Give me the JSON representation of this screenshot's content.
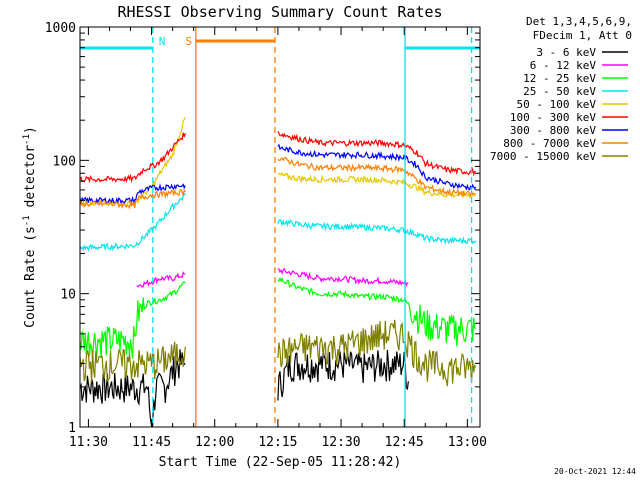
{
  "chart_data": {
    "type": "line",
    "title": "RHESSI Observing Summary Count Rates",
    "xlabel": "Start Time (22-Sep-05 11:28:42)",
    "ylabel_main": "Count Rate (s",
    "ylabel_sup1": "-1",
    "ylabel_mid": " detector",
    "ylabel_sup2": "-1",
    "ylabel_end": ")",
    "yscale": "log",
    "ylim": [
      1,
      1000
    ],
    "xlim_minutes": [
      -2.0,
      93.0
    ],
    "x_ticks": [
      {
        "m": 0,
        "label": "11:30"
      },
      {
        "m": 15,
        "label": "11:45"
      },
      {
        "m": 30,
        "label": "12:00"
      },
      {
        "m": 45,
        "label": "12:15"
      },
      {
        "m": 60,
        "label": "12:30"
      },
      {
        "m": 75,
        "label": "12:45"
      },
      {
        "m": 90,
        "label": "13:00"
      }
    ],
    "y_ticks": [
      {
        "v": 1,
        "label": "1"
      },
      {
        "v": 10,
        "label": "10"
      },
      {
        "v": 100,
        "label": "100"
      },
      {
        "v": 1000,
        "label": "1000"
      }
    ],
    "legend": {
      "header1": "Det 1,3,4,5,6,9,",
      "header2": "FDecim 1, Att 0",
      "placement": "outside-right"
    },
    "timestamp": "20-Oct-2021 12:44",
    "annotations": [
      {
        "text": "N",
        "m": 17.5,
        "color": "#00e5ee"
      },
      {
        "text": "S",
        "m": 23.8,
        "color": "#ff7f00"
      }
    ],
    "night_intervals": [
      {
        "start": -2.0,
        "end": 15.3,
        "color": "#00e5ee"
      },
      {
        "start": 75.2,
        "end": 93.0,
        "color": "#00e5ee"
      }
    ],
    "saa_interval": {
      "start": 25.5,
      "end": 44.3,
      "color": "#ff7f00"
    },
    "vertical_markers": [
      {
        "m": 15.3,
        "color": "#00e5ee",
        "style": "dashed"
      },
      {
        "m": 25.5,
        "color": "#ff7f00",
        "style": "solid"
      },
      {
        "m": 44.3,
        "color": "#ff7f00",
        "style": "dashed"
      },
      {
        "m": 75.2,
        "color": "#00e5ee",
        "style": "solid"
      },
      {
        "m": 91.0,
        "color": "#00e5ee",
        "style": "dashed"
      }
    ],
    "series": [
      {
        "name": "3 - 6 keV",
        "color": "#000000",
        "segments": [
          {
            "points": [
              [
                -2,
                2
              ],
              [
                12,
                2
              ],
              [
                13,
                2
              ],
              [
                14,
                2
              ],
              [
                15,
                1
              ],
              [
                16,
                2
              ],
              [
                18,
                2
              ],
              [
                21,
                3
              ],
              [
                23,
                3
              ]
            ]
          },
          {
            "points": [
              [
                45,
                2
              ],
              [
                48,
                3
              ],
              [
                52,
                3
              ],
              [
                55,
                3
              ],
              [
                60,
                3
              ],
              [
                65,
                2.8
              ],
              [
                70,
                3
              ],
              [
                75,
                3
              ],
              [
                76,
                2.2
              ]
            ]
          }
        ]
      },
      {
        "name": "6 - 12 keV",
        "color": "#ff00ff",
        "segments": [
          {
            "points": [
              [
                11.5,
                11.5
              ],
              [
                14,
                12
              ],
              [
                17,
                13
              ],
              [
                20,
                13
              ],
              [
                23,
                14
              ]
            ]
          },
          {
            "points": [
              [
                45,
                15
              ],
              [
                50,
                14
              ],
              [
                55,
                13
              ],
              [
                60,
                13
              ],
              [
                65,
                12.5
              ],
              [
                70,
                12.5
              ],
              [
                75,
                12
              ],
              [
                76,
                12
              ]
            ]
          }
        ]
      },
      {
        "name": "12 - 25 keV",
        "color": "#00ff00",
        "segments": [
          {
            "points": [
              [
                -2,
                4.5
              ],
              [
                5,
                4.5
              ],
              [
                11,
                4.5
              ],
              [
                11.5,
                7
              ],
              [
                14,
                8.5
              ],
              [
                17,
                9
              ],
              [
                20,
                10
              ],
              [
                23,
                12
              ]
            ]
          },
          {
            "points": [
              [
                45,
                13
              ],
              [
                50,
                11
              ],
              [
                55,
                10
              ],
              [
                60,
                10
              ],
              [
                65,
                9.5
              ],
              [
                70,
                9.5
              ],
              [
                75,
                9
              ],
              [
                80,
                6
              ],
              [
                85,
                5.5
              ],
              [
                90,
                5.5
              ],
              [
                92,
                5.5
              ]
            ]
          }
        ]
      },
      {
        "name": "25 - 50 keV",
        "color": "#00e5ee",
        "segments": [
          {
            "points": [
              [
                -2,
                22
              ],
              [
                5,
                22.5
              ],
              [
                11,
                23
              ],
              [
                14,
                28
              ],
              [
                16,
                32
              ],
              [
                18,
                38
              ],
              [
                20,
                45
              ],
              [
                23,
                55
              ]
            ]
          },
          {
            "points": [
              [
                45,
                35
              ],
              [
                50,
                33
              ],
              [
                55,
                32
              ],
              [
                60,
                32
              ],
              [
                65,
                31.5
              ],
              [
                70,
                31
              ],
              [
                75,
                30
              ],
              [
                78,
                28
              ],
              [
                80,
                26
              ],
              [
                85,
                25
              ],
              [
                90,
                25
              ],
              [
                92,
                25
              ]
            ]
          }
        ]
      },
      {
        "name": "50 - 100 keV",
        "color": "#e6c800",
        "segments": [
          {
            "points": [
              [
                -2,
                48
              ],
              [
                5,
                48
              ],
              [
                11,
                48
              ],
              [
                13,
                55
              ],
              [
                15,
                63
              ],
              [
                17,
                80
              ],
              [
                20,
                110
              ],
              [
                23,
                210
              ]
            ]
          },
          {
            "points": [
              [
                45,
                78
              ],
              [
                50,
                73
              ],
              [
                55,
                72
              ],
              [
                60,
                72
              ],
              [
                65,
                72
              ],
              [
                70,
                71
              ],
              [
                75,
                68
              ],
              [
                78,
                63
              ],
              [
                80,
                58
              ],
              [
                85,
                55
              ],
              [
                90,
                55
              ],
              [
                92,
                55
              ]
            ]
          }
        ]
      },
      {
        "name": "100 - 300 keV",
        "color": "#ff0000",
        "segments": [
          {
            "points": [
              [
                -2,
                72
              ],
              [
                5,
                72
              ],
              [
                11,
                73
              ],
              [
                13,
                85
              ],
              [
                16,
                93
              ],
              [
                18,
                105
              ],
              [
                20,
                125
              ],
              [
                23,
                160
              ]
            ]
          },
          {
            "points": [
              [
                45,
                160
              ],
              [
                50,
                145
              ],
              [
                55,
                135
              ],
              [
                60,
                135
              ],
              [
                65,
                135
              ],
              [
                70,
                135
              ],
              [
                75,
                130
              ],
              [
                78,
                115
              ],
              [
                80,
                95
              ],
              [
                85,
                85
              ],
              [
                90,
                82
              ],
              [
                92,
                82
              ]
            ]
          }
        ]
      },
      {
        "name": "300 - 800 keV",
        "color": "#0000ff",
        "segments": [
          {
            "points": [
              [
                -2,
                50
              ],
              [
                5,
                50
              ],
              [
                11,
                50
              ],
              [
                12,
                58
              ],
              [
                15,
                62
              ],
              [
                18,
                63
              ],
              [
                20,
                64
              ],
              [
                23,
                65
              ]
            ]
          },
          {
            "points": [
              [
                45,
                125
              ],
              [
                50,
                115
              ],
              [
                55,
                110
              ],
              [
                60,
                110
              ],
              [
                65,
                110
              ],
              [
                70,
                108
              ],
              [
                75,
                105
              ],
              [
                78,
                92
              ],
              [
                80,
                75
              ],
              [
                85,
                67
              ],
              [
                90,
                63
              ],
              [
                92,
                63
              ]
            ]
          }
        ]
      },
      {
        "name": "800 - 7000 keV",
        "color": "#ff7f00",
        "segments": [
          {
            "points": [
              [
                -2,
                47
              ],
              [
                5,
                47
              ],
              [
                11,
                46
              ],
              [
                12,
                52
              ],
              [
                15,
                55
              ],
              [
                18,
                56
              ],
              [
                20,
                57
              ],
              [
                23,
                58
              ]
            ]
          },
          {
            "points": [
              [
                45,
                105
              ],
              [
                50,
                93
              ],
              [
                55,
                88
              ],
              [
                60,
                88
              ],
              [
                65,
                88
              ],
              [
                70,
                87
              ],
              [
                75,
                85
              ],
              [
                78,
                72
              ],
              [
                80,
                63
              ],
              [
                85,
                58
              ],
              [
                90,
                56
              ],
              [
                92,
                56
              ]
            ]
          }
        ]
      },
      {
        "name": "7000 - 15000 keV",
        "color": "#808000",
        "segments": [
          {
            "points": [
              [
                -2,
                3
              ],
              [
                5,
                3
              ],
              [
                11,
                3
              ],
              [
                15,
                3
              ],
              [
                18,
                3.2
              ],
              [
                21,
                3.5
              ],
              [
                23,
                4
              ]
            ]
          },
          {
            "points": [
              [
                45,
                3.5
              ],
              [
                50,
                4
              ],
              [
                55,
                4
              ],
              [
                60,
                4
              ],
              [
                65,
                4.5
              ],
              [
                70,
                5
              ],
              [
                75,
                5
              ],
              [
                78,
                3.5
              ],
              [
                80,
                3
              ],
              [
                85,
                2.8
              ],
              [
                90,
                2.8
              ],
              [
                92,
                2.8
              ]
            ]
          }
        ]
      }
    ]
  }
}
